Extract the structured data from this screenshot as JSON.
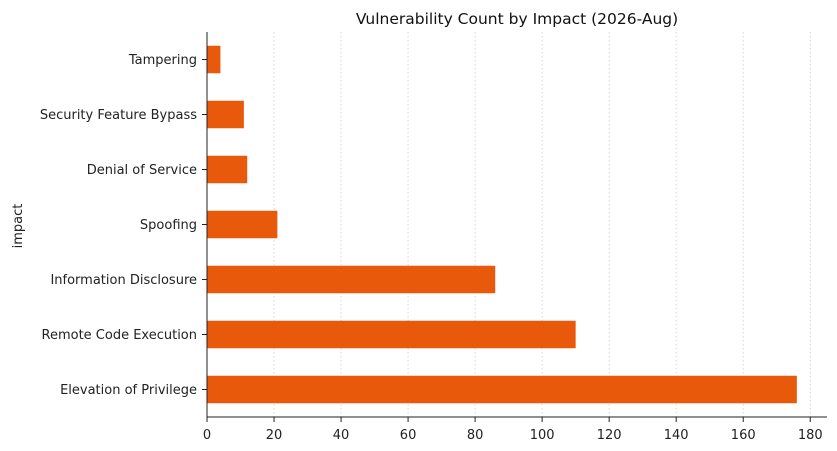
{
  "chart_data": {
    "type": "bar",
    "orientation": "horizontal",
    "title": "Vulnerability Count by Impact (2026-Aug)",
    "xlabel": "",
    "ylabel": "impact",
    "categories": [
      "Elevation of Privilege",
      "Remote Code Execution",
      "Information Disclosure",
      "Spoofing",
      "Denial of Service",
      "Security Feature Bypass",
      "Tampering"
    ],
    "values": [
      176,
      110,
      86,
      21,
      12,
      11,
      4
    ],
    "xlim": [
      0,
      185
    ],
    "xticks": [
      "0",
      "20",
      "40",
      "60",
      "80",
      "100",
      "120",
      "140",
      "160",
      "180"
    ],
    "grid": "vertical dotted",
    "legend": "none",
    "bar_color": "#e8590c"
  }
}
